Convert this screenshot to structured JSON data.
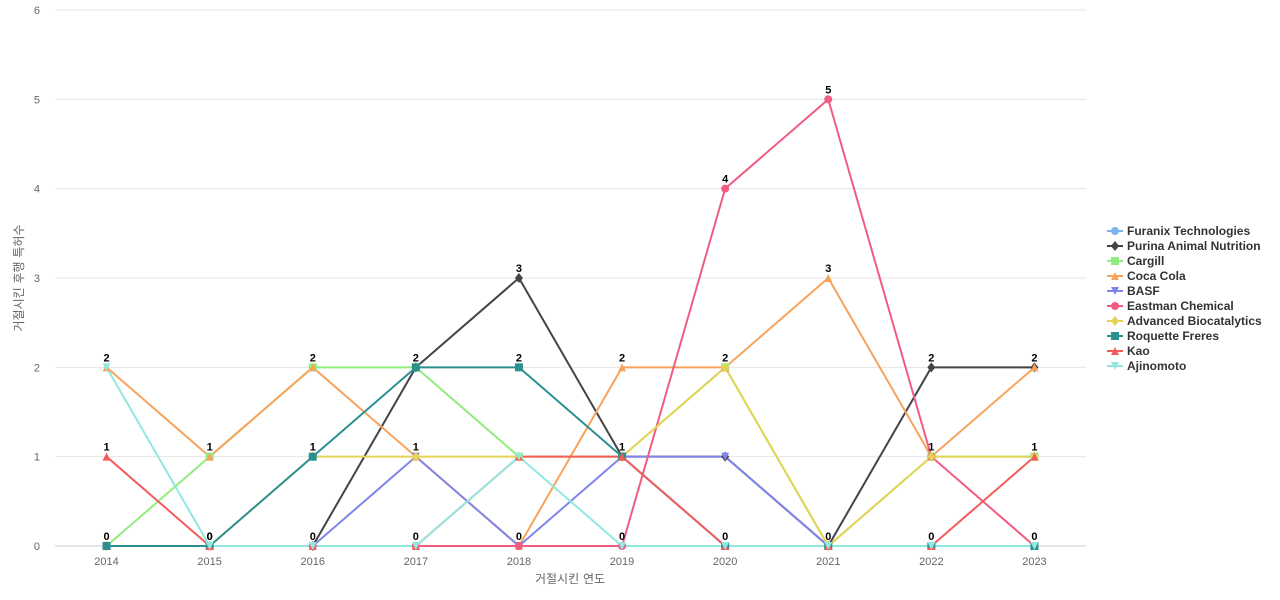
{
  "chart_data": {
    "type": "line",
    "title": "",
    "xlabel": "거절시킨 연도",
    "ylabel": "거절시킨 후행 특허수",
    "ylim": [
      0,
      6
    ],
    "yticks": [
      0,
      1,
      2,
      3,
      4,
      5,
      6
    ],
    "grid": true,
    "legend_position": "right",
    "categories": [
      "2014",
      "2015",
      "2016",
      "2017",
      "2018",
      "2019",
      "2020",
      "2021",
      "2022",
      "2023"
    ],
    "series": [
      {
        "name": "Furanix Technologies",
        "color": "#7cb5ec",
        "marker": "circle",
        "values": [
          0,
          0,
          0,
          0,
          0,
          0,
          0,
          0,
          0,
          0
        ]
      },
      {
        "name": "Purina Animal Nutrition",
        "color": "#434348",
        "marker": "diamond",
        "values": [
          0,
          0,
          0,
          2,
          3,
          1,
          1,
          0,
          2,
          2
        ]
      },
      {
        "name": "Cargill",
        "color": "#90ed7d",
        "marker": "square",
        "values": [
          0,
          1,
          2,
          2,
          1,
          1,
          2,
          0,
          1,
          1
        ]
      },
      {
        "name": "Coca Cola",
        "color": "#f7a35c",
        "marker": "triangle",
        "values": [
          2,
          1,
          2,
          1,
          0,
          2,
          2,
          3,
          1,
          2
        ]
      },
      {
        "name": "BASF",
        "color": "#8085e9",
        "marker": "triangle-down",
        "values": [
          0,
          0,
          0,
          1,
          0,
          1,
          1,
          0,
          0,
          0
        ]
      },
      {
        "name": "Eastman Chemical",
        "color": "#f15c80",
        "marker": "circle",
        "values": [
          0,
          0,
          0,
          0,
          0,
          0,
          4,
          5,
          1,
          0
        ]
      },
      {
        "name": "Advanced Biocatalytics",
        "color": "#e4d354",
        "marker": "diamond",
        "values": [
          0,
          0,
          1,
          1,
          1,
          1,
          2,
          0,
          1,
          1
        ]
      },
      {
        "name": "Roquette Freres",
        "color": "#2b908f",
        "marker": "square",
        "values": [
          0,
          0,
          1,
          2,
          2,
          1,
          0,
          0,
          0,
          0
        ]
      },
      {
        "name": "Kao",
        "color": "#f45b5b",
        "marker": "triangle",
        "values": [
          1,
          0,
          0,
          0,
          1,
          1,
          0,
          0,
          0,
          1
        ]
      },
      {
        "name": "Ajinomoto",
        "color": "#91e8e1",
        "marker": "triangle-down",
        "values": [
          2,
          0,
          0,
          0,
          1,
          0,
          0,
          0,
          0,
          0
        ]
      }
    ],
    "data_labels": [
      2,
      1,
      2,
      2,
      3,
      2,
      4,
      5,
      2,
      2
    ],
    "data_labels_low": [
      1,
      0,
      1,
      1,
      2,
      1,
      2,
      3,
      1,
      1
    ],
    "data_labels_zero": [
      0,
      0,
      0,
      0,
      0,
      0,
      0,
      0,
      0,
      0
    ]
  }
}
